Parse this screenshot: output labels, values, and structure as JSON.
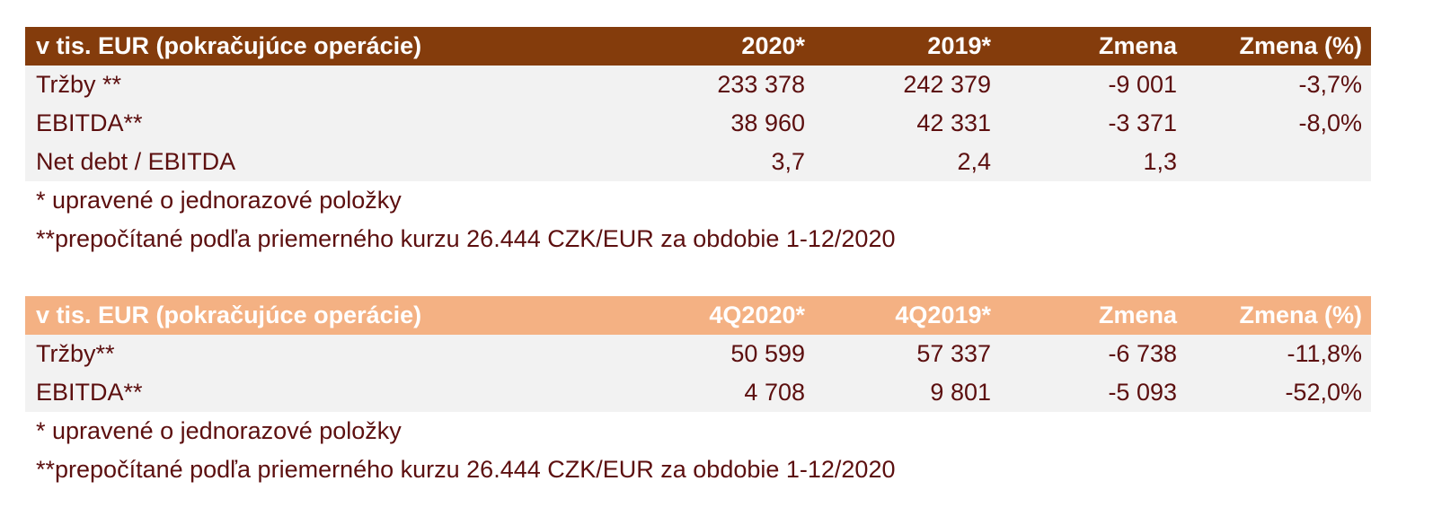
{
  "table1": {
    "header": [
      "v tis. EUR (pokračujúce operácie)",
      "2020*",
      "2019*",
      "Zmena",
      "Zmena (%)"
    ],
    "rows": [
      [
        "Tržby **",
        "233 378",
        "242 379",
        "-9 001",
        "-3,7%"
      ],
      [
        "EBITDA**",
        "38 960",
        "42 331",
        "-3 371",
        "-8,0%"
      ],
      [
        "Net debt / EBITDA",
        "3,7",
        "2,4",
        "1,3",
        ""
      ]
    ],
    "notes": [
      "* upravené o jednorazové položky",
      "**prepočítané podľa priemerného kurzu 26.444 CZK/EUR za obdobie 1-12/2020"
    ],
    "header_color": "#843c0c"
  },
  "table2": {
    "header": [
      "v tis. EUR (pokračujúce operácie)",
      "4Q2020*",
      "4Q2019*",
      "Zmena",
      "Zmena (%)"
    ],
    "rows": [
      [
        "Tržby**",
        "50 599",
        "57 337",
        "-6 738",
        "-11,8%"
      ],
      [
        "EBITDA**",
        "4 708",
        "9 801",
        "-5 093",
        "-52,0%"
      ]
    ],
    "notes": [
      "* upravené o jednorazové položky",
      "**prepočítané podľa priemerného kurzu 26.444 CZK/EUR za obdobie 1-12/2020"
    ],
    "header_color": "#f4b183"
  }
}
